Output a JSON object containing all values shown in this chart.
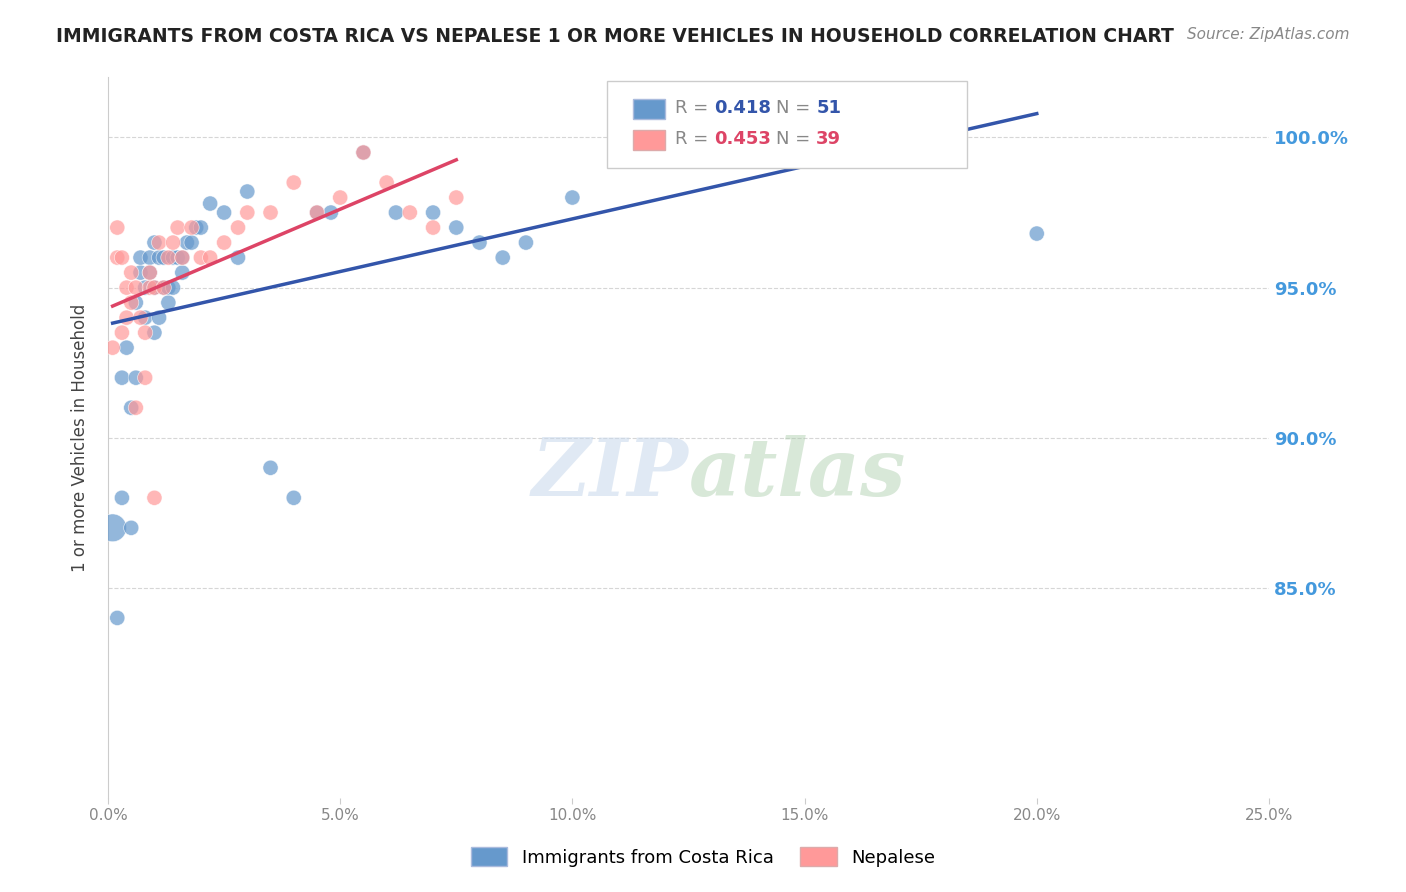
{
  "title": "IMMIGRANTS FROM COSTA RICA VS NEPALESE 1 OR MORE VEHICLES IN HOUSEHOLD CORRELATION CHART",
  "source": "Source: ZipAtlas.com",
  "ylabel": "1 or more Vehicles in Household",
  "ytick_labels": [
    "85.0%",
    "90.0%",
    "95.0%",
    "100.0%"
  ],
  "ytick_values": [
    0.85,
    0.9,
    0.95,
    1.0
  ],
  "xlim": [
    0.0,
    0.25
  ],
  "ylim": [
    0.78,
    1.02
  ],
  "legend_blue_r": "0.418",
  "legend_blue_n": "51",
  "legend_pink_r": "0.453",
  "legend_pink_n": "39",
  "blue_color": "#6699CC",
  "pink_color": "#FF9999",
  "blue_line_color": "#3355AA",
  "pink_line_color": "#DD4466",
  "watermark_zip": "ZIP",
  "watermark_atlas": "atlas",
  "blue_scatter_x": [
    0.001,
    0.002,
    0.003,
    0.003,
    0.004,
    0.005,
    0.005,
    0.006,
    0.006,
    0.007,
    0.007,
    0.008,
    0.008,
    0.009,
    0.009,
    0.01,
    0.01,
    0.01,
    0.011,
    0.011,
    0.012,
    0.012,
    0.013,
    0.013,
    0.014,
    0.014,
    0.015,
    0.016,
    0.016,
    0.017,
    0.018,
    0.019,
    0.02,
    0.022,
    0.025,
    0.028,
    0.03,
    0.035,
    0.04,
    0.045,
    0.048,
    0.055,
    0.062,
    0.07,
    0.075,
    0.08,
    0.085,
    0.09,
    0.1,
    0.15,
    0.2
  ],
  "blue_scatter_y": [
    0.87,
    0.84,
    0.88,
    0.92,
    0.93,
    0.87,
    0.91,
    0.92,
    0.945,
    0.955,
    0.96,
    0.94,
    0.95,
    0.955,
    0.96,
    0.935,
    0.95,
    0.965,
    0.94,
    0.96,
    0.95,
    0.96,
    0.945,
    0.95,
    0.95,
    0.96,
    0.96,
    0.955,
    0.96,
    0.965,
    0.965,
    0.97,
    0.97,
    0.978,
    0.975,
    0.96,
    0.982,
    0.89,
    0.88,
    0.975,
    0.975,
    0.995,
    0.975,
    0.975,
    0.97,
    0.965,
    0.96,
    0.965,
    0.98,
    0.998,
    0.968
  ],
  "pink_scatter_x": [
    0.001,
    0.002,
    0.002,
    0.003,
    0.003,
    0.004,
    0.004,
    0.005,
    0.005,
    0.006,
    0.006,
    0.007,
    0.008,
    0.008,
    0.009,
    0.009,
    0.01,
    0.01,
    0.011,
    0.012,
    0.013,
    0.014,
    0.015,
    0.016,
    0.018,
    0.02,
    0.022,
    0.025,
    0.028,
    0.03,
    0.035,
    0.04,
    0.045,
    0.05,
    0.055,
    0.06,
    0.065,
    0.07,
    0.075
  ],
  "pink_scatter_y": [
    0.93,
    0.96,
    0.97,
    0.935,
    0.96,
    0.94,
    0.95,
    0.945,
    0.955,
    0.91,
    0.95,
    0.94,
    0.92,
    0.935,
    0.95,
    0.955,
    0.88,
    0.95,
    0.965,
    0.95,
    0.96,
    0.965,
    0.97,
    0.96,
    0.97,
    0.96,
    0.96,
    0.965,
    0.97,
    0.975,
    0.975,
    0.985,
    0.975,
    0.98,
    0.995,
    0.985,
    0.975,
    0.97,
    0.98
  ]
}
